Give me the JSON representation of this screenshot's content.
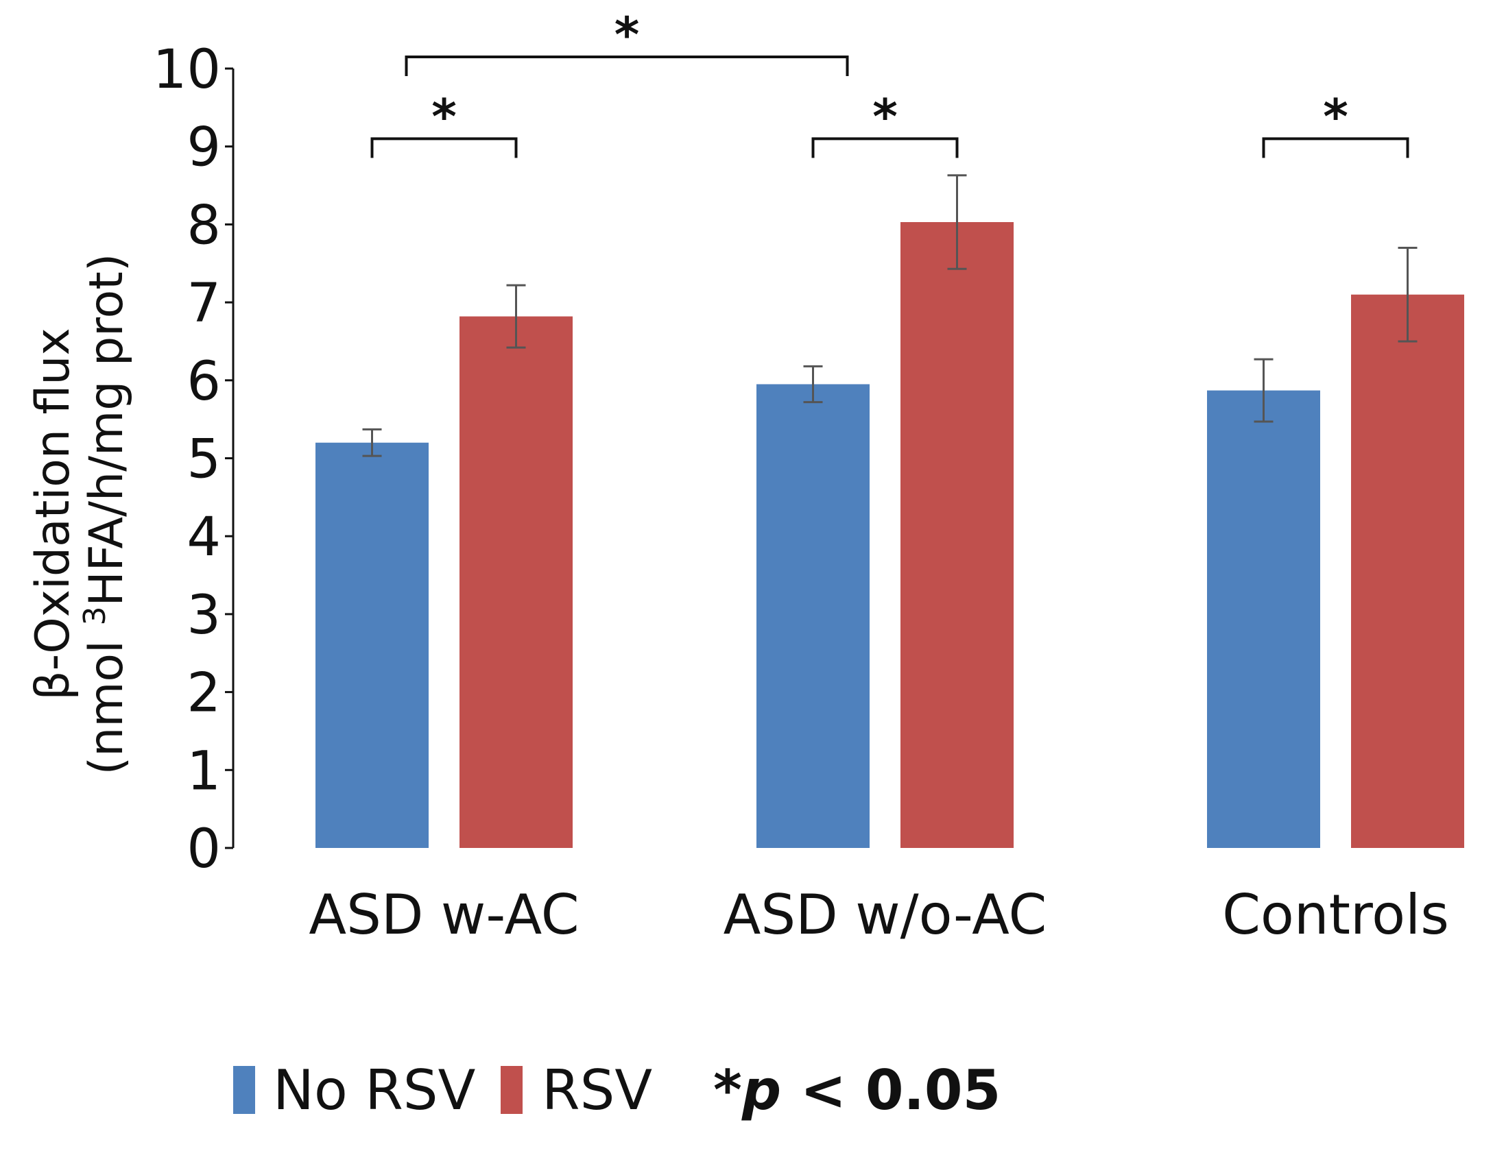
{
  "chart_data": {
    "type": "bar",
    "categories": [
      "ASD w-AC",
      "ASD w/o-AC",
      "Controls"
    ],
    "series": [
      {
        "name": "No RSV",
        "color": "#4f81bd",
        "values": [
          5.2,
          5.95,
          5.87
        ],
        "errors": [
          0.17,
          0.23,
          0.4
        ]
      },
      {
        "name": "RSV",
        "color": "#c0504d",
        "values": [
          6.82,
          8.03,
          7.1
        ],
        "errors": [
          0.4,
          0.6,
          0.6
        ]
      }
    ],
    "ylim": [
      0,
      10
    ],
    "yticks": [
      0,
      1,
      2,
      3,
      4,
      5,
      6,
      7,
      8,
      9,
      10
    ],
    "ylabel_line1": "β-Oxidation flux",
    "ylabel_line2_pre": "(nmol ",
    "ylabel_line2_sup": "3",
    "ylabel_line2_post": "HFA/h/mg prot)",
    "xlabel": "",
    "significance": [
      {
        "label": "*",
        "group": 0,
        "from_series": 0,
        "to_series": 1,
        "y": 9.1
      },
      {
        "label": "*",
        "group": 1,
        "from_series": 0,
        "to_series": 1,
        "y": 9.1
      },
      {
        "label": "*",
        "group": 2,
        "from_series": 0,
        "to_series": 1,
        "y": 9.1
      },
      {
        "label": "*",
        "from_group": 0,
        "to_group": 1,
        "y": 10.15
      }
    ],
    "legend": {
      "items": [
        "No RSV",
        "RSV"
      ],
      "note_star": "*",
      "note_p": "p",
      "note_rest": " < 0.05",
      "placement": "bottom"
    }
  }
}
